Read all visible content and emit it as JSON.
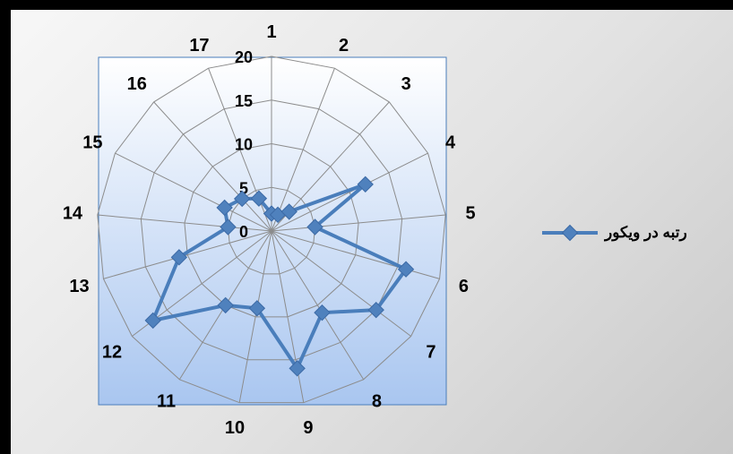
{
  "chart_data": {
    "type": "radar",
    "categories": [
      "1",
      "2",
      "3",
      "4",
      "5",
      "6",
      "7",
      "8",
      "9",
      "10",
      "11",
      "12",
      "13",
      "14",
      "15",
      "16",
      "17"
    ],
    "series": [
      {
        "name": "رتبه در ویکور",
        "values": [
          2,
          2,
          3,
          12,
          5,
          16,
          15,
          11,
          16,
          9,
          10,
          17,
          11,
          5,
          6,
          5,
          4
        ]
      }
    ],
    "rlim": [
      0,
      20
    ],
    "ticks": [
      "0",
      "5",
      "10",
      "15",
      "20"
    ],
    "tick_values": [
      0,
      5,
      10,
      15,
      20
    ],
    "grid": true,
    "legend_position": "right",
    "colors": {
      "series": "#4a7ebb",
      "marker": "#4f81bd",
      "grid": "#8c8c8c",
      "plot_top": "#ffffff",
      "plot_bottom": "#a9c6f0"
    }
  }
}
